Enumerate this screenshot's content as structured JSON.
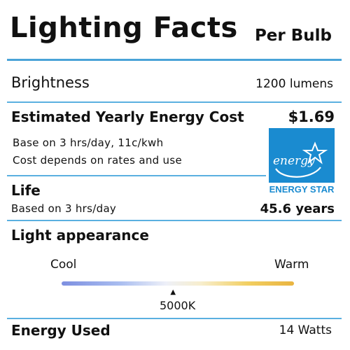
{
  "header": {
    "title": "Lighting Facts",
    "subtitle": "Per Bulb"
  },
  "brightness": {
    "label": "Brightness",
    "value": "1200 lumens"
  },
  "energy_cost": {
    "label": "Estimated Yearly Energy Cost",
    "value": "$1.69",
    "note1": "Base on 3 hrs/day, 11c/kwh",
    "note2": "Cost depends on rates and use"
  },
  "energy_star": {
    "script_text": "energy",
    "label": "ENERGY STAR",
    "color": "#1a8bd0"
  },
  "life": {
    "label": "Life",
    "note": "Based on 3 hrs/day",
    "value": "45.6 years"
  },
  "light_appearance": {
    "label": "Light appearance",
    "cool_label": "Cool",
    "warm_label": "Warm",
    "marker_symbol": "▲",
    "color_temperature": "5000K",
    "marker_fraction": 0.48
  },
  "energy_used": {
    "label": "Energy Used",
    "value": "14 Watts"
  },
  "colors": {
    "rule": "#4aa3d8",
    "text": "#111111"
  }
}
